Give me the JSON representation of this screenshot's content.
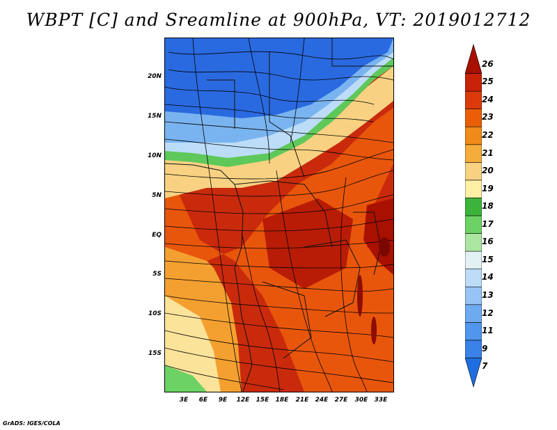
{
  "title": "WBPT [C] and Sreamline at 900hPa, VT: 2019012712",
  "credit": "GrADS: IGES/COLA",
  "map": {
    "lat_labels": [
      "20N",
      "15N",
      "10N",
      "5N",
      "EQ",
      "5S",
      "10S",
      "15S"
    ],
    "lon_labels": [
      "3E",
      "6E",
      "9E",
      "12E",
      "15E",
      "18E",
      "21E",
      "24E",
      "27E",
      "30E",
      "33E"
    ]
  },
  "colorbar": {
    "labels": [
      "7",
      "9",
      "11",
      "12",
      "13",
      "14",
      "15",
      "16",
      "17",
      "18",
      "19",
      "20",
      "21",
      "22",
      "23",
      "24",
      "25",
      "26"
    ],
    "colors": [
      "#1e6ee0",
      "#3a82e8",
      "#5096ec",
      "#6eaaf0",
      "#96c4f4",
      "#bcdcf8",
      "#e2f2f4",
      "#aae6a0",
      "#6cd264",
      "#3cb43c",
      "#fff0a6",
      "#f8d282",
      "#f4ac3a",
      "#f08a18",
      "#ea5e08",
      "#dc3a0a",
      "#c82208",
      "#a81000"
    ]
  },
  "colors": {
    "cold": "#2a6ae0",
    "cool": "#7ab4f0",
    "green": "#5ec85a",
    "yellow": "#fbe39a",
    "orange": "#f07a18",
    "red": "#cc2c0c"
  }
}
